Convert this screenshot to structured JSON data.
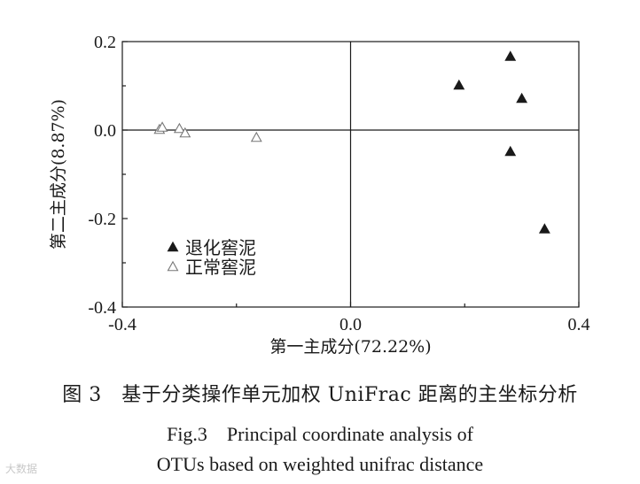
{
  "chart_data": {
    "type": "scatter",
    "title": "",
    "xlabel": "第一主成分(72.22%)",
    "ylabel": "第二主成分(8.87%)",
    "xlim": [
      -0.4,
      0.4
    ],
    "ylim": [
      -0.4,
      0.2
    ],
    "x_ticks": [
      "-0.4",
      "0.0",
      "0.4"
    ],
    "y_ticks": [
      "0.2",
      "0.0",
      "-0.2",
      "-0.4"
    ],
    "grid": false,
    "zero_lines": true,
    "legend_position": "bottom-left",
    "series": [
      {
        "name": "退化窖泥",
        "marker": "filled-triangle",
        "color": "#1a1a1a",
        "points": [
          {
            "x": 0.19,
            "y": 0.1
          },
          {
            "x": 0.28,
            "y": 0.165
          },
          {
            "x": 0.3,
            "y": 0.07
          },
          {
            "x": 0.28,
            "y": -0.05
          },
          {
            "x": 0.34,
            "y": -0.225
          }
        ]
      },
      {
        "name": "正常窖泥",
        "marker": "open-triangle",
        "color": "#777777",
        "points": [
          {
            "x": -0.335,
            "y": 0.0
          },
          {
            "x": -0.33,
            "y": 0.005
          },
          {
            "x": -0.3,
            "y": 0.002
          },
          {
            "x": -0.29,
            "y": -0.008
          },
          {
            "x": -0.165,
            "y": -0.018
          }
        ]
      }
    ]
  },
  "caption": {
    "chinese": "图 3　基于分类操作单元加权 UniFrac 距离的主坐标分析",
    "english_line1": "Fig.3　Principal coordinate analysis of",
    "english_line2": "OTUs based on weighted unifrac distance"
  },
  "watermark": "大数据"
}
